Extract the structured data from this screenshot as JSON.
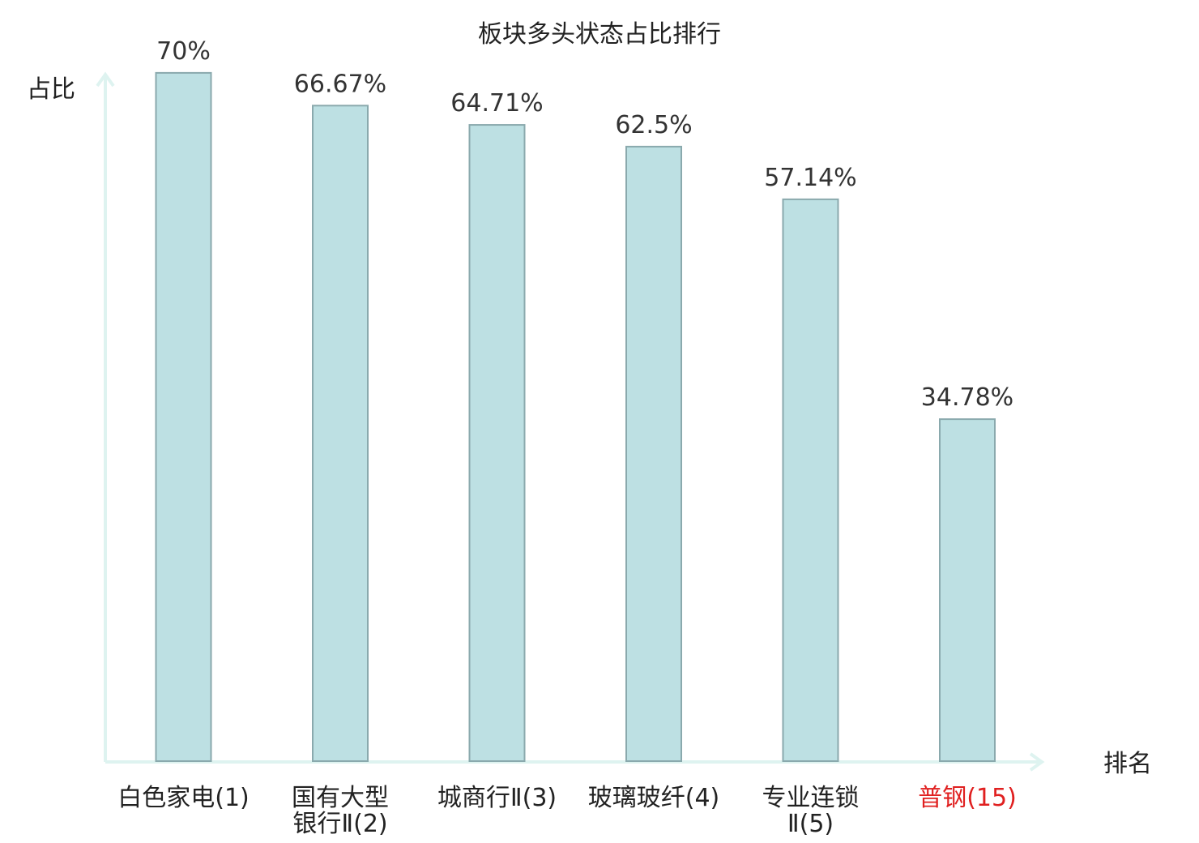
{
  "chart_data": {
    "type": "bar",
    "title": "板块多头状态占比排行",
    "ylabel": "占比",
    "xlabel": "排名",
    "ylim": [
      0,
      70
    ],
    "categories": [
      [
        "白色家电(1)"
      ],
      [
        "国有大型",
        "银行Ⅱ(2)"
      ],
      [
        "城商行Ⅱ(3)"
      ],
      [
        "玻璃玻纤(4)"
      ],
      [
        "专业连锁",
        "Ⅱ(5)"
      ],
      [
        "普钢(15)"
      ]
    ],
    "values": [
      70,
      66.67,
      64.71,
      62.5,
      57.14,
      34.78
    ],
    "value_labels": [
      "70%",
      "66.67%",
      "64.71%",
      "62.5%",
      "57.14%",
      "34.78%"
    ],
    "highlight_index": 5,
    "colors": {
      "bar_fill": "#bde0e3",
      "bar_stroke": "#8aa9ad",
      "axis": "#def3f0",
      "highlight_text": "#e02020"
    },
    "grid": false
  }
}
